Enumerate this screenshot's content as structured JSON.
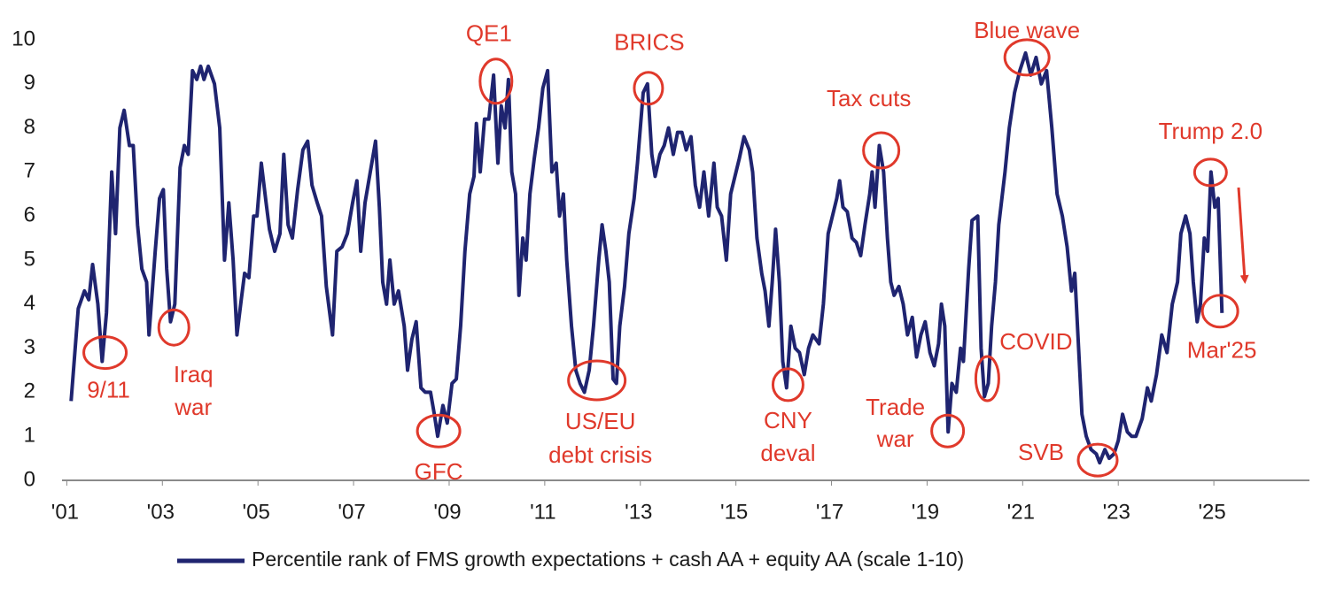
{
  "chart_data": {
    "type": "line",
    "x": [
      2001.09,
      2001.24,
      2001.37,
      2001.46,
      2001.54,
      2001.65,
      2001.74,
      2001.83,
      2001.94,
      2002.02,
      2002.11,
      2002.2,
      2002.31,
      2002.39,
      2002.48,
      2002.57,
      2002.67,
      2002.72,
      2002.85,
      2002.94,
      2003.02,
      2003.09,
      2003.17,
      2003.26,
      2003.37,
      2003.46,
      2003.54,
      2003.63,
      2003.72,
      2003.8,
      2003.87,
      2003.96,
      2004.09,
      2004.2,
      2004.3,
      2004.39,
      2004.48,
      2004.56,
      2004.65,
      2004.72,
      2004.81,
      2004.91,
      2004.98,
      2005.07,
      2005.17,
      2005.24,
      2005.35,
      2005.46,
      2005.54,
      2005.63,
      2005.72,
      2005.83,
      2005.94,
      2006.04,
      2006.13,
      2006.24,
      2006.33,
      2006.43,
      2006.56,
      2006.65,
      2006.76,
      2006.87,
      2006.98,
      2007.07,
      2007.15,
      2007.24,
      2007.35,
      2007.46,
      2007.54,
      2007.61,
      2007.69,
      2007.76,
      2007.85,
      2007.94,
      2008.06,
      2008.13,
      2008.22,
      2008.31,
      2008.41,
      2008.5,
      2008.61,
      2008.69,
      2008.76,
      2008.87,
      2008.96,
      2009.06,
      2009.15,
      2009.24,
      2009.33,
      2009.43,
      2009.52,
      2009.57,
      2009.65,
      2009.74,
      2009.83,
      2009.93,
      2010.02,
      2010.09,
      2010.17,
      2010.24,
      2010.31,
      2010.39,
      2010.46,
      2010.54,
      2010.61,
      2010.69,
      2010.78,
      2010.87,
      2010.96,
      2011.06,
      2011.15,
      2011.24,
      2011.31,
      2011.39,
      2011.46,
      2011.56,
      2011.65,
      2011.74,
      2011.83,
      2011.93,
      2012.02,
      2012.13,
      2012.2,
      2012.28,
      2012.35,
      2012.43,
      2012.5,
      2012.57,
      2012.67,
      2012.76,
      2012.87,
      2012.94,
      2013.06,
      2013.15,
      2013.24,
      2013.31,
      2013.41,
      2013.5,
      2013.59,
      2013.69,
      2013.78,
      2013.87,
      2013.96,
      2014.06,
      2014.15,
      2014.24,
      2014.33,
      2014.43,
      2014.54,
      2014.61,
      2014.7,
      2014.8,
      2014.89,
      2014.98,
      2015.07,
      2015.17,
      2015.28,
      2015.35,
      2015.44,
      2015.54,
      2015.61,
      2015.69,
      2015.76,
      2015.83,
      2015.91,
      2015.98,
      2016.06,
      2016.15,
      2016.24,
      2016.33,
      2016.43,
      2016.52,
      2016.61,
      2016.74,
      2016.83,
      2016.93,
      2017.02,
      2017.11,
      2017.17,
      2017.24,
      2017.33,
      2017.43,
      2017.52,
      2017.61,
      2017.7,
      2017.8,
      2017.85,
      2017.91,
      2018,
      2018.09,
      2018.17,
      2018.24,
      2018.31,
      2018.41,
      2018.5,
      2018.59,
      2018.69,
      2018.78,
      2018.87,
      2018.96,
      2019.06,
      2019.15,
      2019.24,
      2019.3,
      2019.37,
      2019.44,
      2019.52,
      2019.61,
      2019.7,
      2019.76,
      2019.87,
      2019.94,
      2020.06,
      2020.13,
      2020.2,
      2020.28,
      2020.35,
      2020.43,
      2020.5,
      2020.63,
      2020.72,
      2020.83,
      2020.94,
      2021.06,
      2021.17,
      2021.28,
      2021.39,
      2021.5,
      2021.61,
      2021.72,
      2021.83,
      2021.93,
      2022.02,
      2022.09,
      2022.17,
      2022.24,
      2022.33,
      2022.43,
      2022.54,
      2022.61,
      2022.72,
      2022.81,
      2022.91,
      2023,
      2023.09,
      2023.19,
      2023.28,
      2023.37,
      2023.5,
      2023.61,
      2023.69,
      2023.8,
      2023.91,
      2024.02,
      2024.13,
      2024.24,
      2024.31,
      2024.41,
      2024.5,
      2024.57,
      2024.65,
      2024.72,
      2024.8,
      2024.87,
      2024.94,
      2025.02,
      2025.09,
      2025.17
    ],
    "series": [
      {
        "name": "Percentile rank of FMS growth expectations + cash AA + equity AA (scale 1-10)",
        "color": "#1f2470",
        "values": [
          1.8,
          3.9,
          4.3,
          4.1,
          4.9,
          4.0,
          2.7,
          3.8,
          7.0,
          5.6,
          8.0,
          8.4,
          7.6,
          7.6,
          5.8,
          4.8,
          4.5,
          3.3,
          5.2,
          6.4,
          6.6,
          4.8,
          3.6,
          4.0,
          7.1,
          7.6,
          7.4,
          9.3,
          9.1,
          9.4,
          9.1,
          9.4,
          9.0,
          8.0,
          5.0,
          6.3,
          5.0,
          3.3,
          4.1,
          4.7,
          4.6,
          6.0,
          6.0,
          7.2,
          6.3,
          5.7,
          5.2,
          5.6,
          7.4,
          5.8,
          5.5,
          6.6,
          7.5,
          7.7,
          6.7,
          6.3,
          6.0,
          4.4,
          3.3,
          5.2,
          5.3,
          5.6,
          6.3,
          6.8,
          5.2,
          6.3,
          7.0,
          7.7,
          6.2,
          4.5,
          4.0,
          5.0,
          4.0,
          4.3,
          3.5,
          2.5,
          3.2,
          3.6,
          2.1,
          2.0,
          2.0,
          1.5,
          1.0,
          1.7,
          1.3,
          2.2,
          2.3,
          3.5,
          5.2,
          6.5,
          6.9,
          8.1,
          7.0,
          8.2,
          8.2,
          9.2,
          7.2,
          8.5,
          8.0,
          9.1,
          7.0,
          6.5,
          4.2,
          5.5,
          5.0,
          6.5,
          7.3,
          8.0,
          8.9,
          9.3,
          7.0,
          7.2,
          6.0,
          6.5,
          5.0,
          3.5,
          2.5,
          2.2,
          2.0,
          2.5,
          3.5,
          5.0,
          5.8,
          5.2,
          4.5,
          2.3,
          2.2,
          3.5,
          4.4,
          5.6,
          6.4,
          7.2,
          8.8,
          9.0,
          7.4,
          6.9,
          7.4,
          7.6,
          8.0,
          7.4,
          7.9,
          7.9,
          7.5,
          7.8,
          6.7,
          6.2,
          7.0,
          6.0,
          7.2,
          6.2,
          6.0,
          5.0,
          6.5,
          6.9,
          7.3,
          7.8,
          7.5,
          7.0,
          5.5,
          4.7,
          4.3,
          3.5,
          4.5,
          5.7,
          4.5,
          2.7,
          2.1,
          3.5,
          3.0,
          2.9,
          2.4,
          3.0,
          3.3,
          3.1,
          4.0,
          5.6,
          6.0,
          6.4,
          6.8,
          6.2,
          6.1,
          5.5,
          5.4,
          5.1,
          5.8,
          6.5,
          7.0,
          6.2,
          7.6,
          7.0,
          5.5,
          4.5,
          4.2,
          4.4,
          4.0,
          3.3,
          3.7,
          2.8,
          3.3,
          3.6,
          2.9,
          2.6,
          3.1,
          4.0,
          3.5,
          1.1,
          2.2,
          2.0,
          3.0,
          2.7,
          4.8,
          5.9,
          6.0,
          3.0,
          1.9,
          2.2,
          3.5,
          4.5,
          5.8,
          7.0,
          8.0,
          8.8,
          9.3,
          9.7,
          9.2,
          9.6,
          9.0,
          9.3,
          8.0,
          6.5,
          6.0,
          5.3,
          4.3,
          4.7,
          3.0,
          1.5,
          1.0,
          0.7,
          0.6,
          0.4,
          0.7,
          0.5,
          0.6,
          0.9,
          1.5,
          1.1,
          1.0,
          1.0,
          1.4,
          2.1,
          1.8,
          2.4,
          3.3,
          2.9,
          4.0,
          4.5,
          5.6,
          6.0,
          5.6,
          4.5,
          3.6,
          4.0,
          5.5,
          5.2,
          7.0,
          6.2,
          6.4,
          3.8
        ]
      }
    ],
    "xlim": [
      2000.9,
      2027
    ],
    "xticks": [
      {
        "value": 2001,
        "label": "'01"
      },
      {
        "value": 2003,
        "label": "'03"
      },
      {
        "value": 2005,
        "label": "'05"
      },
      {
        "value": 2007,
        "label": "'07"
      },
      {
        "value": 2009,
        "label": "'09"
      },
      {
        "value": 2011,
        "label": "'11"
      },
      {
        "value": 2013,
        "label": "'13"
      },
      {
        "value": 2015,
        "label": "'15"
      },
      {
        "value": 2017,
        "label": "'17"
      },
      {
        "value": 2019,
        "label": "'19"
      },
      {
        "value": 2021,
        "label": "'21"
      },
      {
        "value": 2023,
        "label": "'23"
      },
      {
        "value": 2025,
        "label": "'25"
      }
    ],
    "ylim": [
      0,
      10
    ],
    "yticks": [
      0,
      1,
      2,
      3,
      4,
      5,
      6,
      7,
      8,
      9,
      10
    ],
    "grid": false,
    "legend": "bottom",
    "annotation_color": "#e0392b",
    "annotations": [
      {
        "text": [
          "9/11"
        ],
        "x": 2001.8,
        "y": 2.9
      },
      {
        "text": [
          "Iraq",
          "war"
        ],
        "x": 2003.24,
        "y": 3.47
      },
      {
        "text": [
          "GFC"
        ],
        "x": 2008.78,
        "y": 1.12
      },
      {
        "text": [
          "QE1"
        ],
        "x": 2009.98,
        "y": 9.06
      },
      {
        "text": [
          "US/EU",
          "debt crisis"
        ],
        "x": 2012.09,
        "y": 2.27
      },
      {
        "text": [
          "BRICS"
        ],
        "x": 2013.17,
        "y": 8.9
      },
      {
        "text": [
          "CNY",
          "deval"
        ],
        "x": 2016.09,
        "y": 2.17
      },
      {
        "text": [
          "Tax cuts"
        ],
        "x": 2018.04,
        "y": 7.49
      },
      {
        "text": [
          "Trade",
          "war"
        ],
        "x": 2019.43,
        "y": 1.12
      },
      {
        "text": [
          "COVID"
        ],
        "x": 2020.26,
        "y": 2.31
      },
      {
        "text": [
          "Blue wave"
        ],
        "x": 2021.09,
        "y": 9.6
      },
      {
        "text": [
          "SVB"
        ],
        "x": 2022.57,
        "y": 0.46
      },
      {
        "text": [
          "Trump 2.0"
        ],
        "x": 2024.93,
        "y": 6.99
      },
      {
        "text": [
          "Mar'25"
        ],
        "x": 2025.13,
        "y": 3.84
      }
    ]
  }
}
